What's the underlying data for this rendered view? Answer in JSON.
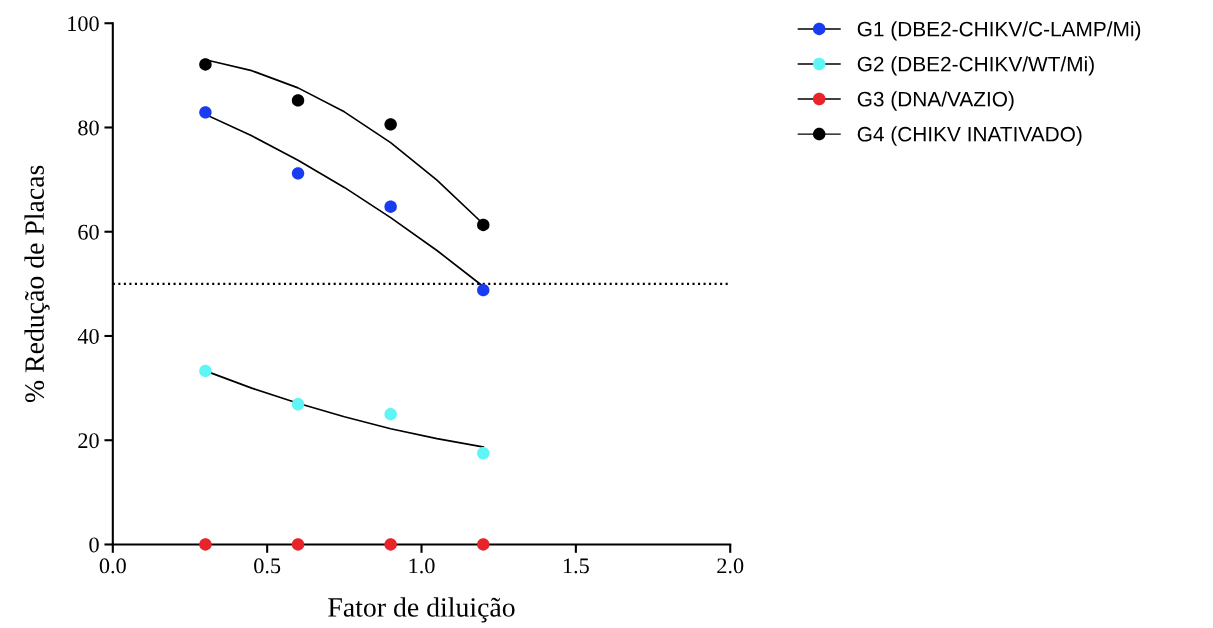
{
  "chart_data": {
    "type": "scatter",
    "xlabel": "Fator de diluição",
    "ylabel": "% Redução de Placas",
    "x": [
      0.3,
      0.6,
      0.9,
      1.2
    ],
    "series": [
      {
        "name": "G1 (DBE2-CHIKV/C-LAMP/Mi)",
        "color": "#1a3cf0",
        "values": [
          82.9,
          71.2,
          64.8,
          48.8
        ]
      },
      {
        "name": "G2 (DBE2-CHIKV/WT/Mi)",
        "color": "#5ff5f5",
        "values": [
          33.3,
          26.9,
          25.0,
          17.5
        ]
      },
      {
        "name": "G3 (DNA/VAZIO)",
        "color": "#e8242a",
        "values": [
          0,
          0,
          0,
          0
        ]
      },
      {
        "name": "G4 (CHIKV INATIVADO)",
        "color": "#000000",
        "values": [
          92.1,
          85.2,
          80.6,
          61.3
        ]
      },
      {
        "type": "line",
        "marker": "none",
        "color": "#000000",
        "x": [
          0.3,
          0.45,
          0.6,
          0.75,
          0.9,
          1.05,
          1.2
        ],
        "values": [
          82.5,
          78.4,
          73.7,
          68.5,
          62.7,
          56.4,
          49.5
        ]
      },
      {
        "type": "line",
        "marker": "none",
        "color": "#000000",
        "x": [
          0.3,
          0.45,
          0.6,
          0.75,
          0.9,
          1.05,
          1.2
        ],
        "values": [
          33.3,
          30.0,
          27.1,
          24.5,
          22.2,
          20.3,
          18.7
        ]
      },
      {
        "type": "line",
        "marker": "none",
        "color": "#000000",
        "x": [
          0.3,
          0.45,
          0.6,
          0.75,
          0.9,
          1.05,
          1.2
        ],
        "values": [
          93.0,
          90.9,
          87.6,
          83.0,
          77.1,
          69.9,
          61.5
        ]
      }
    ],
    "marker": "circle",
    "xlim": [
      0,
      2.0
    ],
    "xticks": [
      {
        "value": 0,
        "label": "0.0"
      },
      0.5,
      {
        "value": 1,
        "label": "1.0"
      },
      1.5,
      {
        "value": 2,
        "label": "2.0"
      }
    ],
    "ylim": [
      0,
      100
    ],
    "yticks": [
      0,
      20,
      40,
      60,
      80,
      100
    ],
    "ref_lines": [
      {
        "axis": "y",
        "value": 50,
        "color": "#000000",
        "line_style": "dotted"
      }
    ],
    "grid": false,
    "legend": "top right"
  }
}
